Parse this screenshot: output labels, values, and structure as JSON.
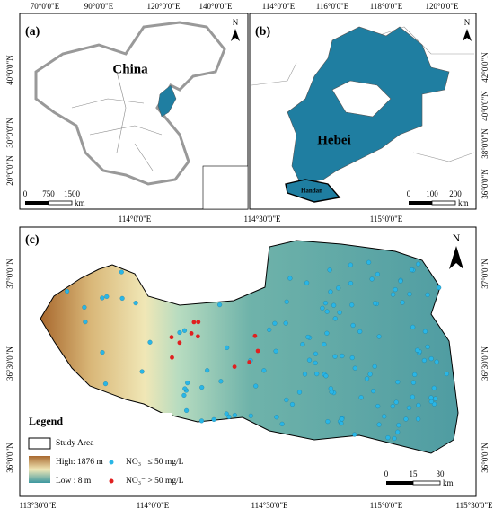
{
  "panel_a": {
    "label": "(a)",
    "country": "China",
    "north": "N",
    "top_ticks": [
      "70°0'0\"E",
      "90°0'0\"E",
      "120°0'0\"E",
      "140°0'0\"E"
    ],
    "left_ticks": [
      "40°0'0\"N",
      "30°0'0\"N",
      "20°0'0\"N"
    ],
    "scale": {
      "ticks": [
        "0",
        "750",
        "1500"
      ],
      "unit": "km"
    }
  },
  "panel_b": {
    "label": "(b)",
    "province": "Hebei",
    "city": "Handan",
    "north": "N",
    "top_ticks": [
      "114°0'0\"E",
      "116°0'0\"E",
      "118°0'0\"E",
      "120°0'0\"E"
    ],
    "right_ticks": [
      "42°0'0\"N",
      "40°0'0\"N",
      "38°0'0\"N",
      "36°0'0\"N"
    ],
    "scale": {
      "ticks": [
        "0",
        "100",
        "200"
      ],
      "unit": "km"
    }
  },
  "panel_c": {
    "label": "(c)",
    "north": "N",
    "top_ticks": [
      "114°0'0\"E",
      "114°30'0\"E",
      "115°0'0\"E"
    ],
    "bottom_ticks": [
      "113°30'0\"E",
      "114°0'0\"E",
      "114°30'0\"E",
      "115°0'0\"E",
      "115°30'0\"E"
    ],
    "left_ticks": [
      "37°0'0\"N",
      "36°30'0\"N",
      "36°0'0\"N"
    ],
    "right_ticks": [
      "37°0'0\"N",
      "36°30'0\"N",
      "36°0'0\"N"
    ],
    "legend": {
      "title": "Legend",
      "study_area": "Study Area",
      "high": "High: 1876 m",
      "low": "Low : 8 m",
      "low_nitrate": "NO₃⁻ ≤ 50 mg/L",
      "high_nitrate": "NO₃⁻ > 50 mg/L"
    },
    "scale": {
      "ticks": [
        "0",
        "15",
        "30"
      ],
      "unit": "km"
    }
  }
}
